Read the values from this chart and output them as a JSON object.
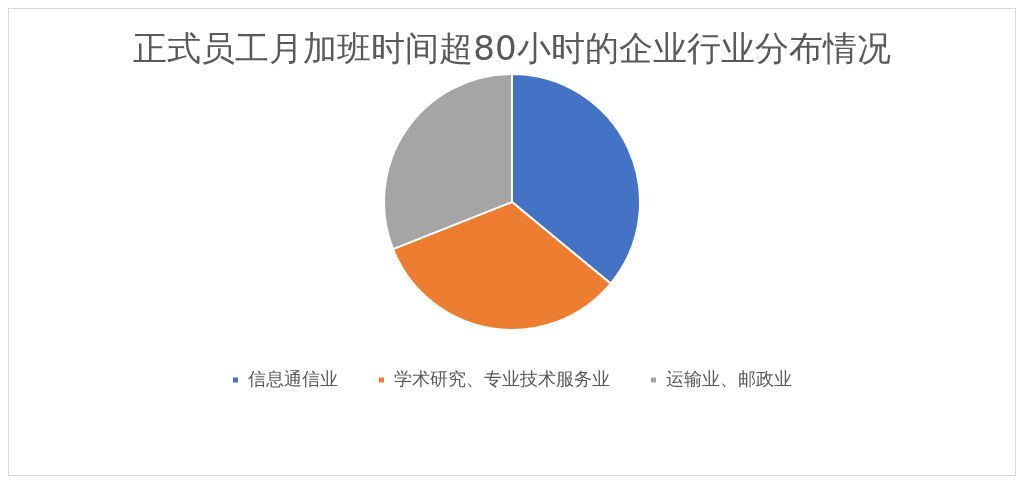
{
  "chart_data": {
    "type": "pie",
    "title": "正式员工月加班时间超80小时的企业行业分布情况",
    "categories": [
      "信息通信业",
      "学术研究、专业技术服务业",
      "运输业、邮政业"
    ],
    "values": [
      36,
      33,
      31
    ],
    "colors": [
      "#4472c4",
      "#ed7d31",
      "#a5a5a5"
    ],
    "legend": "bottom"
  }
}
